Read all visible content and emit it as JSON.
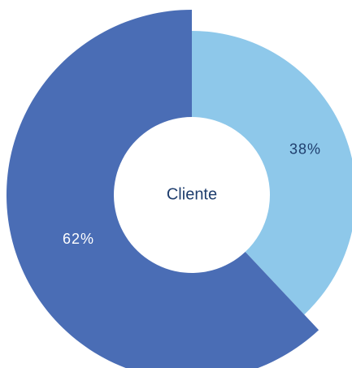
{
  "chart_data": {
    "type": "pie",
    "center_label": "Cliente",
    "values": [
      38,
      62
    ],
    "value_labels": [
      "38%",
      "62%"
    ],
    "colors": [
      "#8ec8ea",
      "#4a6db5"
    ],
    "label_colors": [
      "#1f3e6e",
      "#ffffff"
    ]
  }
}
